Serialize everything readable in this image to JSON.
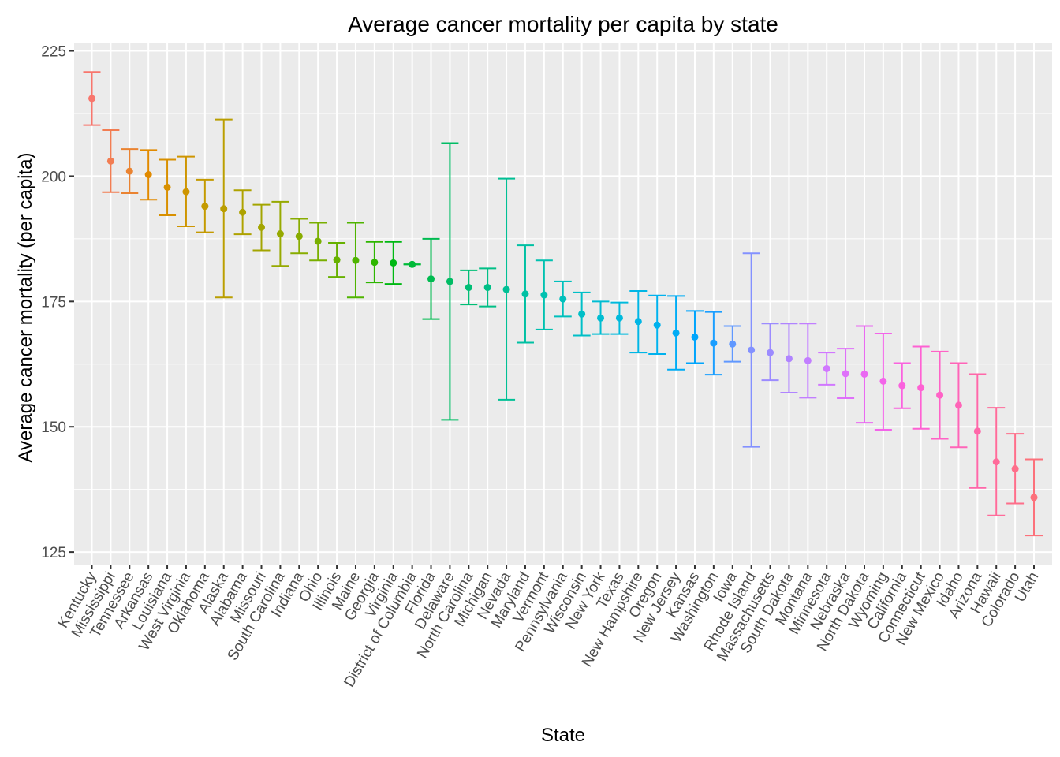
{
  "chart_data": {
    "type": "scatter",
    "subtype": "point-with-errorbars",
    "title": "Average cancer mortality per capita by state",
    "xlabel": "State",
    "ylabel": "Average cancer mortality (per capita)",
    "ylim": [
      122.5,
      226.5
    ],
    "yticks": [
      125,
      150,
      175,
      200,
      225
    ],
    "grid": true,
    "legend": "none",
    "panel_background": "#ebebeb",
    "grid_color": "#ffffff",
    "series": [
      {
        "name": "Kentucky",
        "value": 215.5,
        "low": 210.2,
        "high": 220.8,
        "color": "#F8766D"
      },
      {
        "name": "Mississippi",
        "value": 203.0,
        "low": 196.8,
        "high": 209.2,
        "color": "#F27D52"
      },
      {
        "name": "Tennessee",
        "value": 201.0,
        "low": 196.6,
        "high": 205.4,
        "color": "#EA8331"
      },
      {
        "name": "Arkansas",
        "value": 200.3,
        "low": 195.3,
        "high": 205.2,
        "color": "#E18A00"
      },
      {
        "name": "Louisiana",
        "value": 197.8,
        "low": 192.2,
        "high": 203.3,
        "color": "#D89000"
      },
      {
        "name": "West Virginia",
        "value": 196.9,
        "low": 190.0,
        "high": 203.9,
        "color": "#CE9500"
      },
      {
        "name": "Oklahoma",
        "value": 194.0,
        "low": 188.8,
        "high": 199.3,
        "color": "#C49A00"
      },
      {
        "name": "Alaska",
        "value": 193.5,
        "low": 175.8,
        "high": 211.3,
        "color": "#BA9E00"
      },
      {
        "name": "Alabama",
        "value": 192.8,
        "low": 188.4,
        "high": 197.2,
        "color": "#AEA200"
      },
      {
        "name": "Missouri",
        "value": 189.8,
        "low": 185.2,
        "high": 194.3,
        "color": "#A3A500"
      },
      {
        "name": "South Carolina",
        "value": 188.5,
        "low": 182.1,
        "high": 194.9,
        "color": "#96A900"
      },
      {
        "name": "Indiana",
        "value": 188.0,
        "low": 184.6,
        "high": 191.5,
        "color": "#88AC00"
      },
      {
        "name": "Ohio",
        "value": 187.0,
        "low": 183.2,
        "high": 190.7,
        "color": "#79AF00"
      },
      {
        "name": "Illinois",
        "value": 183.3,
        "low": 179.9,
        "high": 186.7,
        "color": "#67B100"
      },
      {
        "name": "Maine",
        "value": 183.2,
        "low": 175.8,
        "high": 190.7,
        "color": "#4FB400"
      },
      {
        "name": "Georgia",
        "value": 182.8,
        "low": 178.8,
        "high": 186.9,
        "color": "#2EB600"
      },
      {
        "name": "Virginia",
        "value": 182.7,
        "low": 178.5,
        "high": 186.9,
        "color": "#00B813"
      },
      {
        "name": "District of Columbia",
        "value": 182.4,
        "low": 182.4,
        "high": 182.4,
        "color": "#00BA38"
      },
      {
        "name": "Florida",
        "value": 179.5,
        "low": 171.5,
        "high": 187.5,
        "color": "#00BB50"
      },
      {
        "name": "Delaware",
        "value": 179.0,
        "low": 151.4,
        "high": 206.6,
        "color": "#00BC64"
      },
      {
        "name": "North Carolina",
        "value": 177.8,
        "low": 174.4,
        "high": 181.2,
        "color": "#00BE76"
      },
      {
        "name": "Michigan",
        "value": 177.8,
        "low": 174.0,
        "high": 181.6,
        "color": "#00BF86"
      },
      {
        "name": "Nevada",
        "value": 177.4,
        "low": 155.4,
        "high": 199.5,
        "color": "#00C095"
      },
      {
        "name": "Maryland",
        "value": 176.5,
        "low": 166.8,
        "high": 186.2,
        "color": "#00C0A3"
      },
      {
        "name": "Vermont",
        "value": 176.3,
        "low": 169.4,
        "high": 183.2,
        "color": "#00C1B0"
      },
      {
        "name": "Pennsylvania",
        "value": 175.5,
        "low": 172.0,
        "high": 179.0,
        "color": "#00C0BC"
      },
      {
        "name": "Wisconsin",
        "value": 172.5,
        "low": 168.2,
        "high": 176.8,
        "color": "#00BFC7"
      },
      {
        "name": "New York",
        "value": 171.7,
        "low": 168.5,
        "high": 175.0,
        "color": "#00BDD2"
      },
      {
        "name": "Texas",
        "value": 171.7,
        "low": 168.5,
        "high": 174.8,
        "color": "#00BADC"
      },
      {
        "name": "New Hampshire",
        "value": 171.0,
        "low": 164.8,
        "high": 177.1,
        "color": "#00B6E5"
      },
      {
        "name": "Oregon",
        "value": 170.3,
        "low": 164.5,
        "high": 176.2,
        "color": "#00B2EE"
      },
      {
        "name": "New Jersey",
        "value": 168.7,
        "low": 161.4,
        "high": 176.1,
        "color": "#00ACF5"
      },
      {
        "name": "Kansas",
        "value": 167.9,
        "low": 162.7,
        "high": 173.1,
        "color": "#00A5FC"
      },
      {
        "name": "Washington",
        "value": 166.7,
        "low": 160.4,
        "high": 172.9,
        "color": "#1A9EFF"
      },
      {
        "name": "Iowa",
        "value": 166.5,
        "low": 163.0,
        "high": 170.1,
        "color": "#6098FF"
      },
      {
        "name": "Rhode Island",
        "value": 165.3,
        "low": 146.0,
        "high": 184.6,
        "color": "#8391FF"
      },
      {
        "name": "Massachusetts",
        "value": 164.8,
        "low": 159.3,
        "high": 170.6,
        "color": "#9C8BFF"
      },
      {
        "name": "South Dakota",
        "value": 163.6,
        "low": 156.8,
        "high": 170.6,
        "color": "#B084FF"
      },
      {
        "name": "Montana",
        "value": 163.2,
        "low": 155.8,
        "high": 170.6,
        "color": "#C27EFF"
      },
      {
        "name": "Minnesota",
        "value": 161.6,
        "low": 158.4,
        "high": 164.8,
        "color": "#D177FF"
      },
      {
        "name": "Nebraska",
        "value": 160.6,
        "low": 155.7,
        "high": 165.6,
        "color": "#DF70FA"
      },
      {
        "name": "North Dakota",
        "value": 160.5,
        "low": 150.8,
        "high": 170.1,
        "color": "#EA69F2"
      },
      {
        "name": "Wyoming",
        "value": 159.1,
        "low": 149.4,
        "high": 168.6,
        "color": "#F364E9"
      },
      {
        "name": "California",
        "value": 158.2,
        "low": 153.7,
        "high": 162.7,
        "color": "#FA62DE"
      },
      {
        "name": "Connecticut",
        "value": 157.8,
        "low": 149.6,
        "high": 166.0,
        "color": "#FE61D3"
      },
      {
        "name": "New Mexico",
        "value": 156.3,
        "low": 147.6,
        "high": 165.0,
        "color": "#FF62C6"
      },
      {
        "name": "Idaho",
        "value": 154.3,
        "low": 145.9,
        "high": 162.7,
        "color": "#FF64B8"
      },
      {
        "name": "Arizona",
        "value": 149.1,
        "low": 137.8,
        "high": 160.5,
        "color": "#FF67A9"
      },
      {
        "name": "Hawaii",
        "value": 143.0,
        "low": 132.3,
        "high": 153.8,
        "color": "#FF6B9A"
      },
      {
        "name": "Colorado",
        "value": 141.6,
        "low": 134.7,
        "high": 148.6,
        "color": "#FE6E8A"
      },
      {
        "name": "Utah",
        "value": 135.9,
        "low": 128.3,
        "high": 143.5,
        "color": "#FC717B"
      }
    ]
  }
}
